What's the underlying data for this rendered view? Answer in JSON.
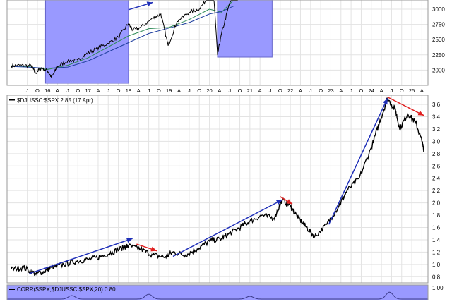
{
  "colors": {
    "price_line": "#000000",
    "ratio_line": "#000000",
    "highlight_fill": "#9999ff",
    "highlight_stroke": "#6666cc",
    "ma_short": "#2e8b57",
    "ma_long": "#1f3f9f",
    "arrow_blue": "#1f2fb8",
    "arrow_red": "#e02020",
    "grid": "#e3e3e3",
    "frame": "#9a9a9a",
    "separator": "#c8c8c8"
  },
  "chart_data": [
    {
      "panel": "top",
      "type": "line",
      "ylim": [
        1750,
        3150
      ],
      "y_ticks": [
        "3000",
        "2750",
        "2500",
        "2250",
        "2000"
      ],
      "y_tick_values": [
        3000,
        2750,
        2500,
        2250,
        2000
      ],
      "x_tick_labels": [
        "J",
        "O",
        "16",
        "A",
        "J",
        "O",
        "17",
        "A",
        "J",
        "O",
        "18",
        "A",
        "J",
        "O",
        "19",
        "A",
        "J",
        "O",
        "20",
        "A",
        "J",
        "O",
        "21",
        "A",
        "J",
        "O",
        "22",
        "A",
        "J",
        "O",
        "23",
        "A",
        "J",
        "O",
        "24",
        "A",
        "J",
        "O",
        "25",
        "A"
      ],
      "x_tick_times": [
        2015.5,
        2015.75,
        2016.0,
        2016.25,
        2016.5,
        2016.75,
        2017.0,
        2017.25,
        2017.5,
        2017.75,
        2018.0,
        2018.25,
        2018.5,
        2018.75,
        2019.0,
        2019.25,
        2019.5,
        2019.75,
        2020.0,
        2020.25,
        2020.5,
        2020.75,
        2021.0,
        2021.25,
        2021.5,
        2021.75,
        2022.0,
        2022.25,
        2022.5,
        2022.75,
        2023.0,
        2023.25,
        2023.5,
        2023.75,
        2024.0,
        2024.25,
        2024.5,
        2024.75,
        2025.0,
        2025.25
      ],
      "series": [
        {
          "x": [
            2015.1,
            2015.35,
            2015.6,
            2015.7,
            2015.85,
            2016.0,
            2016.1,
            2016.25,
            2016.5,
            2016.75,
            2016.95,
            2017.2,
            2017.5,
            2017.75,
            2018.0,
            2018.1,
            2018.3,
            2018.6,
            2018.8,
            2018.98,
            2019.2,
            2019.5,
            2019.75,
            2020.0,
            2020.1,
            2020.2,
            2020.3,
            2020.5,
            2020.7
          ],
          "values": [
            2070,
            2080,
            2070,
            1950,
            2040,
            1990,
            1880,
            2060,
            2150,
            2160,
            2260,
            2350,
            2440,
            2540,
            2760,
            2660,
            2700,
            2850,
            2920,
            2400,
            2800,
            2950,
            3000,
            3230,
            3300,
            2250,
            2600,
            3100,
            3350
          ]
        }
      ],
      "moving_averages": [
        {
          "x": [
            2015.1,
            2015.5,
            2016.0,
            2016.5,
            2017.0,
            2017.5,
            2018.0,
            2018.5,
            2019.0,
            2019.5,
            2020.0,
            2020.3,
            2020.6
          ],
          "values": [
            2070,
            2060,
            2010,
            2080,
            2200,
            2380,
            2560,
            2680,
            2700,
            2830,
            3000,
            2950,
            3150
          ]
        },
        {
          "x": [
            2015.1,
            2015.5,
            2016.0,
            2016.5,
            2017.0,
            2017.5,
            2018.0,
            2018.5,
            2019.0,
            2019.5,
            2020.0,
            2020.3,
            2020.6
          ],
          "values": [
            2060,
            2050,
            2030,
            2050,
            2150,
            2300,
            2450,
            2600,
            2690,
            2780,
            2920,
            2960,
            3050
          ]
        }
      ],
      "highlight_periods": [
        {
          "from": 2015.95,
          "to": 2018.0
        },
        {
          "from": 2020.2,
          "to": 2021.55
        }
      ],
      "arrows": [
        {
          "from": [
            2018.0,
            2990
          ],
          "to": [
            2018.6,
            3110
          ],
          "color": "blue"
        }
      ]
    },
    {
      "panel": "middle",
      "type": "line",
      "legend": "$DJUSSC:$SPX 2.85 (17 Apr)",
      "ylim": [
        0.7,
        3.75
      ],
      "y_ticks": [
        "3.6",
        "3.4",
        "3.2",
        "3.0",
        "2.8",
        "2.6",
        "2.4",
        "2.2",
        "2.0",
        "1.8",
        "1.6",
        "1.4",
        "1.2",
        "1.0",
        "0.8"
      ],
      "y_tick_values": [
        3.6,
        3.4,
        3.2,
        3.0,
        2.8,
        2.6,
        2.4,
        2.2,
        2.0,
        1.8,
        1.6,
        1.4,
        1.2,
        1.0,
        0.8
      ],
      "series": [
        {
          "name": "$DJUSSC:$SPX",
          "x": [
            2015.1,
            2015.4,
            2015.7,
            2015.9,
            2016.1,
            2016.4,
            2016.7,
            2017.0,
            2017.3,
            2017.6,
            2017.9,
            2018.0,
            2018.3,
            2018.6,
            2018.9,
            2019.1,
            2019.4,
            2019.7,
            2020.0,
            2020.3,
            2020.5,
            2020.8,
            2021.0,
            2021.3,
            2021.6,
            2021.8,
            2022.0,
            2022.2,
            2022.4,
            2022.6,
            2022.9,
            2023.2,
            2023.4,
            2023.7,
            2024.0,
            2024.2,
            2024.4,
            2024.6,
            2024.7,
            2024.9,
            2025.1,
            2025.25,
            2025.3
          ],
          "values": [
            0.92,
            0.95,
            0.85,
            0.88,
            0.95,
            1.0,
            1.05,
            1.08,
            1.12,
            1.2,
            1.28,
            1.3,
            1.25,
            1.15,
            1.12,
            1.2,
            1.15,
            1.25,
            1.38,
            1.42,
            1.5,
            1.62,
            1.7,
            1.8,
            1.75,
            2.05,
            1.95,
            1.75,
            1.6,
            1.45,
            1.65,
            1.95,
            2.2,
            2.4,
            2.9,
            3.3,
            3.7,
            3.5,
            3.2,
            3.45,
            3.3,
            3.0,
            2.85
          ]
        }
      ],
      "arrows": [
        {
          "from": [
            2015.55,
            0.85
          ],
          "to": [
            2018.1,
            1.42
          ],
          "color": "blue"
        },
        {
          "from": [
            2018.2,
            1.33
          ],
          "to": [
            2018.7,
            1.22
          ],
          "color": "red"
        },
        {
          "from": [
            2019.1,
            1.13
          ],
          "to": [
            2021.8,
            2.05
          ],
          "color": "blue"
        },
        {
          "from": [
            2021.75,
            2.1
          ],
          "to": [
            2022.05,
            1.98
          ],
          "color": "red"
        },
        {
          "from": [
            2022.95,
            1.65
          ],
          "to": [
            2024.4,
            3.7
          ],
          "color": "blue"
        },
        {
          "from": [
            2024.4,
            3.72
          ],
          "to": [
            2025.3,
            3.42
          ],
          "color": "red"
        }
      ]
    },
    {
      "panel": "bottom",
      "type": "area",
      "legend": "CORR($SPX,$DJUSSC:$SPX,20) 0.80",
      "y_ticks": [
        "1.00"
      ],
      "y_tick_values": [
        1.0
      ]
    }
  ]
}
